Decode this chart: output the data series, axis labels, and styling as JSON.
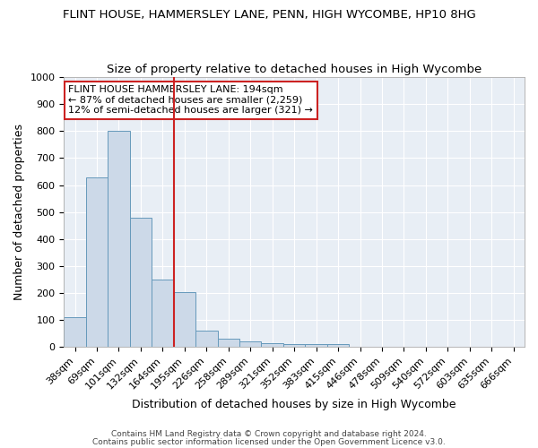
{
  "title": "FLINT HOUSE, HAMMERSLEY LANE, PENN, HIGH WYCOMBE, HP10 8HG",
  "subtitle": "Size of property relative to detached houses in High Wycombe",
  "xlabel": "Distribution of detached houses by size in High Wycombe",
  "ylabel": "Number of detached properties",
  "categories": [
    "38sqm",
    "69sqm",
    "101sqm",
    "132sqm",
    "164sqm",
    "195sqm",
    "226sqm",
    "258sqm",
    "289sqm",
    "321sqm",
    "352sqm",
    "383sqm",
    "415sqm",
    "446sqm",
    "478sqm",
    "509sqm",
    "540sqm",
    "572sqm",
    "603sqm",
    "635sqm",
    "666sqm"
  ],
  "values": [
    110,
    630,
    800,
    480,
    250,
    205,
    60,
    30,
    20,
    15,
    10,
    10,
    10,
    0,
    0,
    0,
    0,
    0,
    0,
    0,
    0
  ],
  "bar_color": "#ccd9e8",
  "bar_edge_color": "#6699bb",
  "vline_index": 5,
  "annotation_line1": "FLINT HOUSE HAMMERSLEY LANE: 194sqm",
  "annotation_line2": "← 87% of detached houses are smaller (2,259)",
  "annotation_line3": "12% of semi-detached houses are larger (321) →",
  "annotation_box_color": "#ffffff",
  "annotation_box_edge": "#cc2222",
  "vline_color": "#cc2222",
  "ylim": [
    0,
    1000
  ],
  "yticks": [
    0,
    100,
    200,
    300,
    400,
    500,
    600,
    700,
    800,
    900,
    1000
  ],
  "fig_bg_color": "#ffffff",
  "plot_bg_color": "#e8eef5",
  "grid_color": "#ffffff",
  "title_fontsize": 9.5,
  "subtitle_fontsize": 9.5,
  "xlabel_fontsize": 9,
  "ylabel_fontsize": 9,
  "tick_fontsize": 8,
  "annot_fontsize": 8,
  "footer_line1": "Contains HM Land Registry data © Crown copyright and database right 2024.",
  "footer_line2": "Contains public sector information licensed under the Open Government Licence v3.0."
}
